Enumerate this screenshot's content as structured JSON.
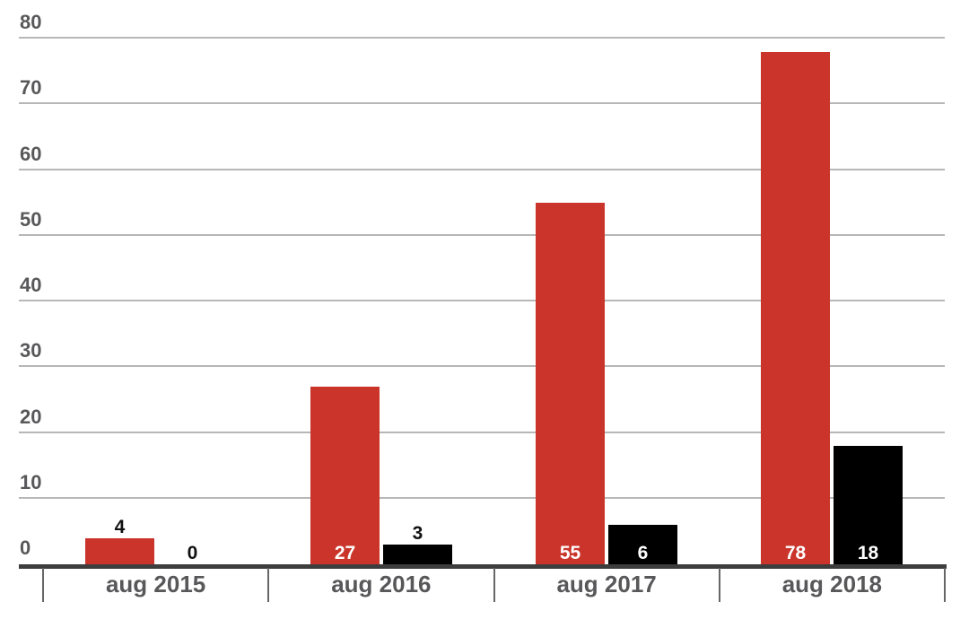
{
  "chart_data": {
    "type": "bar",
    "title": "",
    "xlabel": "",
    "ylabel": "",
    "categories": [
      "aug 2015",
      "aug 2016",
      "aug 2017",
      "aug 2018"
    ],
    "series": [
      {
        "name": "red",
        "color": "#ca342b",
        "values": [
          4,
          27,
          55,
          78
        ]
      },
      {
        "name": "black",
        "color": "#000000",
        "values": [
          0,
          3,
          6,
          18
        ]
      }
    ],
    "ylim": [
      0,
      80
    ],
    "ytick_step": 10,
    "y_tick_labels": [
      "0",
      "10",
      "20",
      "30",
      "40",
      "50",
      "60",
      "70",
      "80"
    ],
    "grid": true,
    "legend": "none",
    "value_labels": true
  },
  "colors": {
    "background": "#ffffff",
    "gridline": "#b7b7b7",
    "baseline": "#3d3d3d",
    "tick": "#666666",
    "axis_text": "#58585a",
    "value_text_outside": "#111111",
    "value_text_inside": "#ffffff"
  }
}
